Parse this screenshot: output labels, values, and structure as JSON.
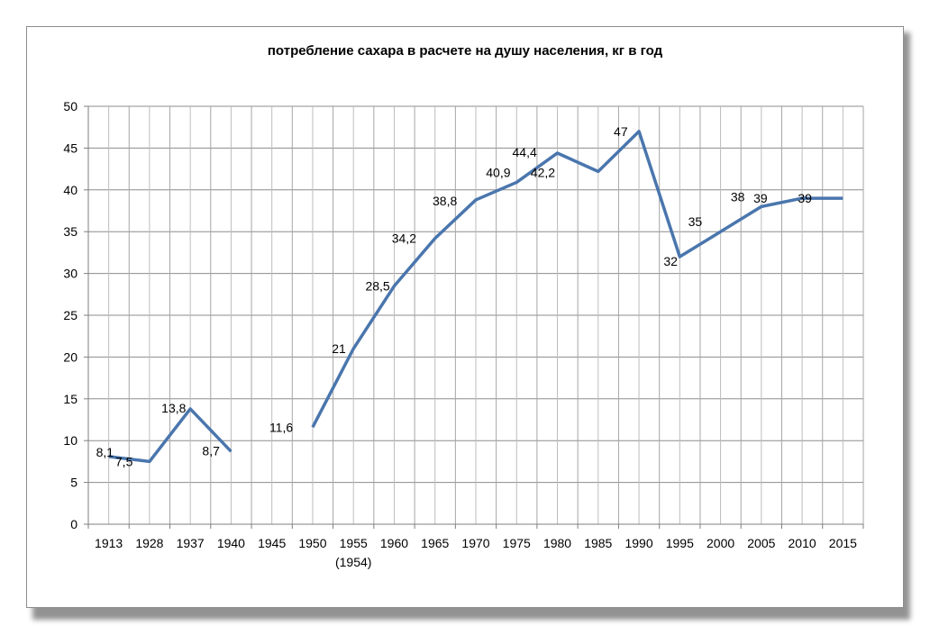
{
  "chart_data": {
    "type": "line",
    "title": "потребление сахара в расчете на душу населения, кг в год",
    "xlabel": "",
    "ylabel": "",
    "categories": [
      "1913",
      "1928",
      "1937",
      "1940",
      "1945",
      "1950",
      "1955",
      "1960",
      "1965",
      "1970",
      "1975",
      "1980",
      "1985",
      "1990",
      "1995",
      "2000",
      "2005",
      "2010",
      "2015"
    ],
    "category_sublabels": {
      "1955": "(1954)"
    },
    "ylim": [
      0,
      50
    ],
    "yticks": [
      0,
      5,
      10,
      15,
      20,
      25,
      30,
      35,
      40,
      45,
      50
    ],
    "grid": true,
    "legend": "none",
    "series": [
      {
        "color": "#4a76ad",
        "segments": [
          [
            {
              "x": 0,
              "y": 8.1,
              "label": "8,1"
            },
            {
              "x": 1,
              "y": 7.5,
              "label": "7,5"
            },
            {
              "x": 2,
              "y": 13.8,
              "label": "13,8"
            },
            {
              "x": 3,
              "y": 8.7,
              "label": "8,7"
            }
          ],
          [
            {
              "x": 5,
              "y": 11.6,
              "label": "11,6"
            },
            {
              "x": 6,
              "y": 21,
              "label": "21"
            },
            {
              "x": 7,
              "y": 28.5,
              "label": "28,5"
            },
            {
              "x": 8,
              "y": 34.2,
              "label": "34,2"
            },
            {
              "x": 9,
              "y": 38.8,
              "label": "38,8"
            },
            {
              "x": 10,
              "y": 40.9,
              "label": "40,9"
            },
            {
              "x": 11,
              "y": 44.4,
              "label": "44,4"
            },
            {
              "x": 12,
              "y": 42.2,
              "label": "42,2"
            },
            {
              "x": 13,
              "y": 47,
              "label": "47"
            },
            {
              "x": 14,
              "y": 32,
              "label": "32"
            },
            {
              "x": 15,
              "y": 35,
              "label": "35"
            },
            {
              "x": 16,
              "y": 38,
              "label": "38"
            },
            {
              "x": 17,
              "y": 39,
              "label": "39"
            },
            {
              "x": 18,
              "y": 39,
              "label": "39"
            }
          ]
        ]
      }
    ]
  }
}
